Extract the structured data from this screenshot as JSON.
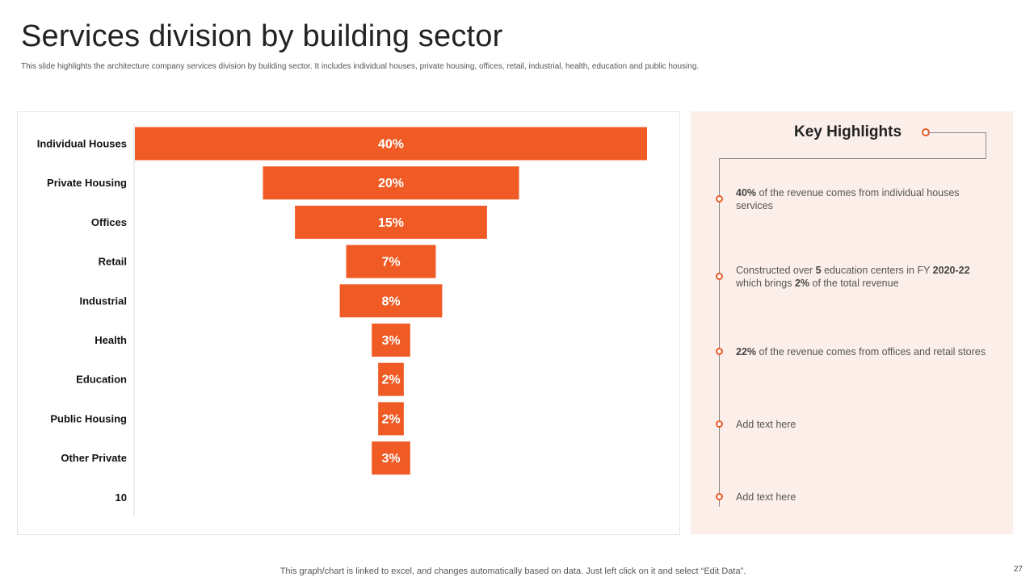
{
  "slide": {
    "title": "Services division by building sector",
    "subtitle": "This slide highlights the architecture company services division by building sector. It includes individual houses, private housing, offices, retail, industrial, health, education and public housing.",
    "footer": "This graph/chart is linked to excel,  and changes automatically based on data. Just left click on it and select “Edit Data”.",
    "page_number": "27"
  },
  "colors": {
    "accent": "#f05a24",
    "panel_bg": "#fcefea"
  },
  "chart_data": {
    "type": "bar",
    "subtype": "funnel",
    "categories": [
      "Individual Houses",
      "Private Housing",
      "Offices",
      "Retail",
      "Industrial",
      "Health",
      "Education",
      "Public Housing",
      "Other Private",
      "10"
    ],
    "values": [
      40,
      20,
      15,
      7,
      8,
      3,
      2,
      2,
      3,
      null
    ],
    "labels": [
      "40%",
      "20%",
      "15%",
      "7%",
      "8%",
      "3%",
      "2%",
      "2%",
      "3%",
      ""
    ],
    "unit": "%",
    "title": "",
    "xlabel": "",
    "ylabel": ""
  },
  "highlights": {
    "title": "Key Highlights",
    "items": [
      {
        "pre": "",
        "b1": "40%",
        "mid": " of the revenue  comes from individual  houses services",
        "b2": "",
        "post": ""
      },
      {
        "pre": "Constructed over  ",
        "b1": "5",
        "mid": " education centers in FY ",
        "b2": "2020-22",
        "post": " which brings ",
        "b3": "2%",
        "tail": " of the total revenue"
      },
      {
        "pre": "",
        "b1": "22%",
        "mid": " of the revenue  comes from offices and retail stores",
        "b2": "",
        "post": ""
      },
      {
        "pre": "Add text here",
        "b1": "",
        "mid": "",
        "b2": "",
        "post": ""
      },
      {
        "pre": "Add text here",
        "b1": "",
        "mid": "",
        "b2": "",
        "post": ""
      }
    ]
  }
}
